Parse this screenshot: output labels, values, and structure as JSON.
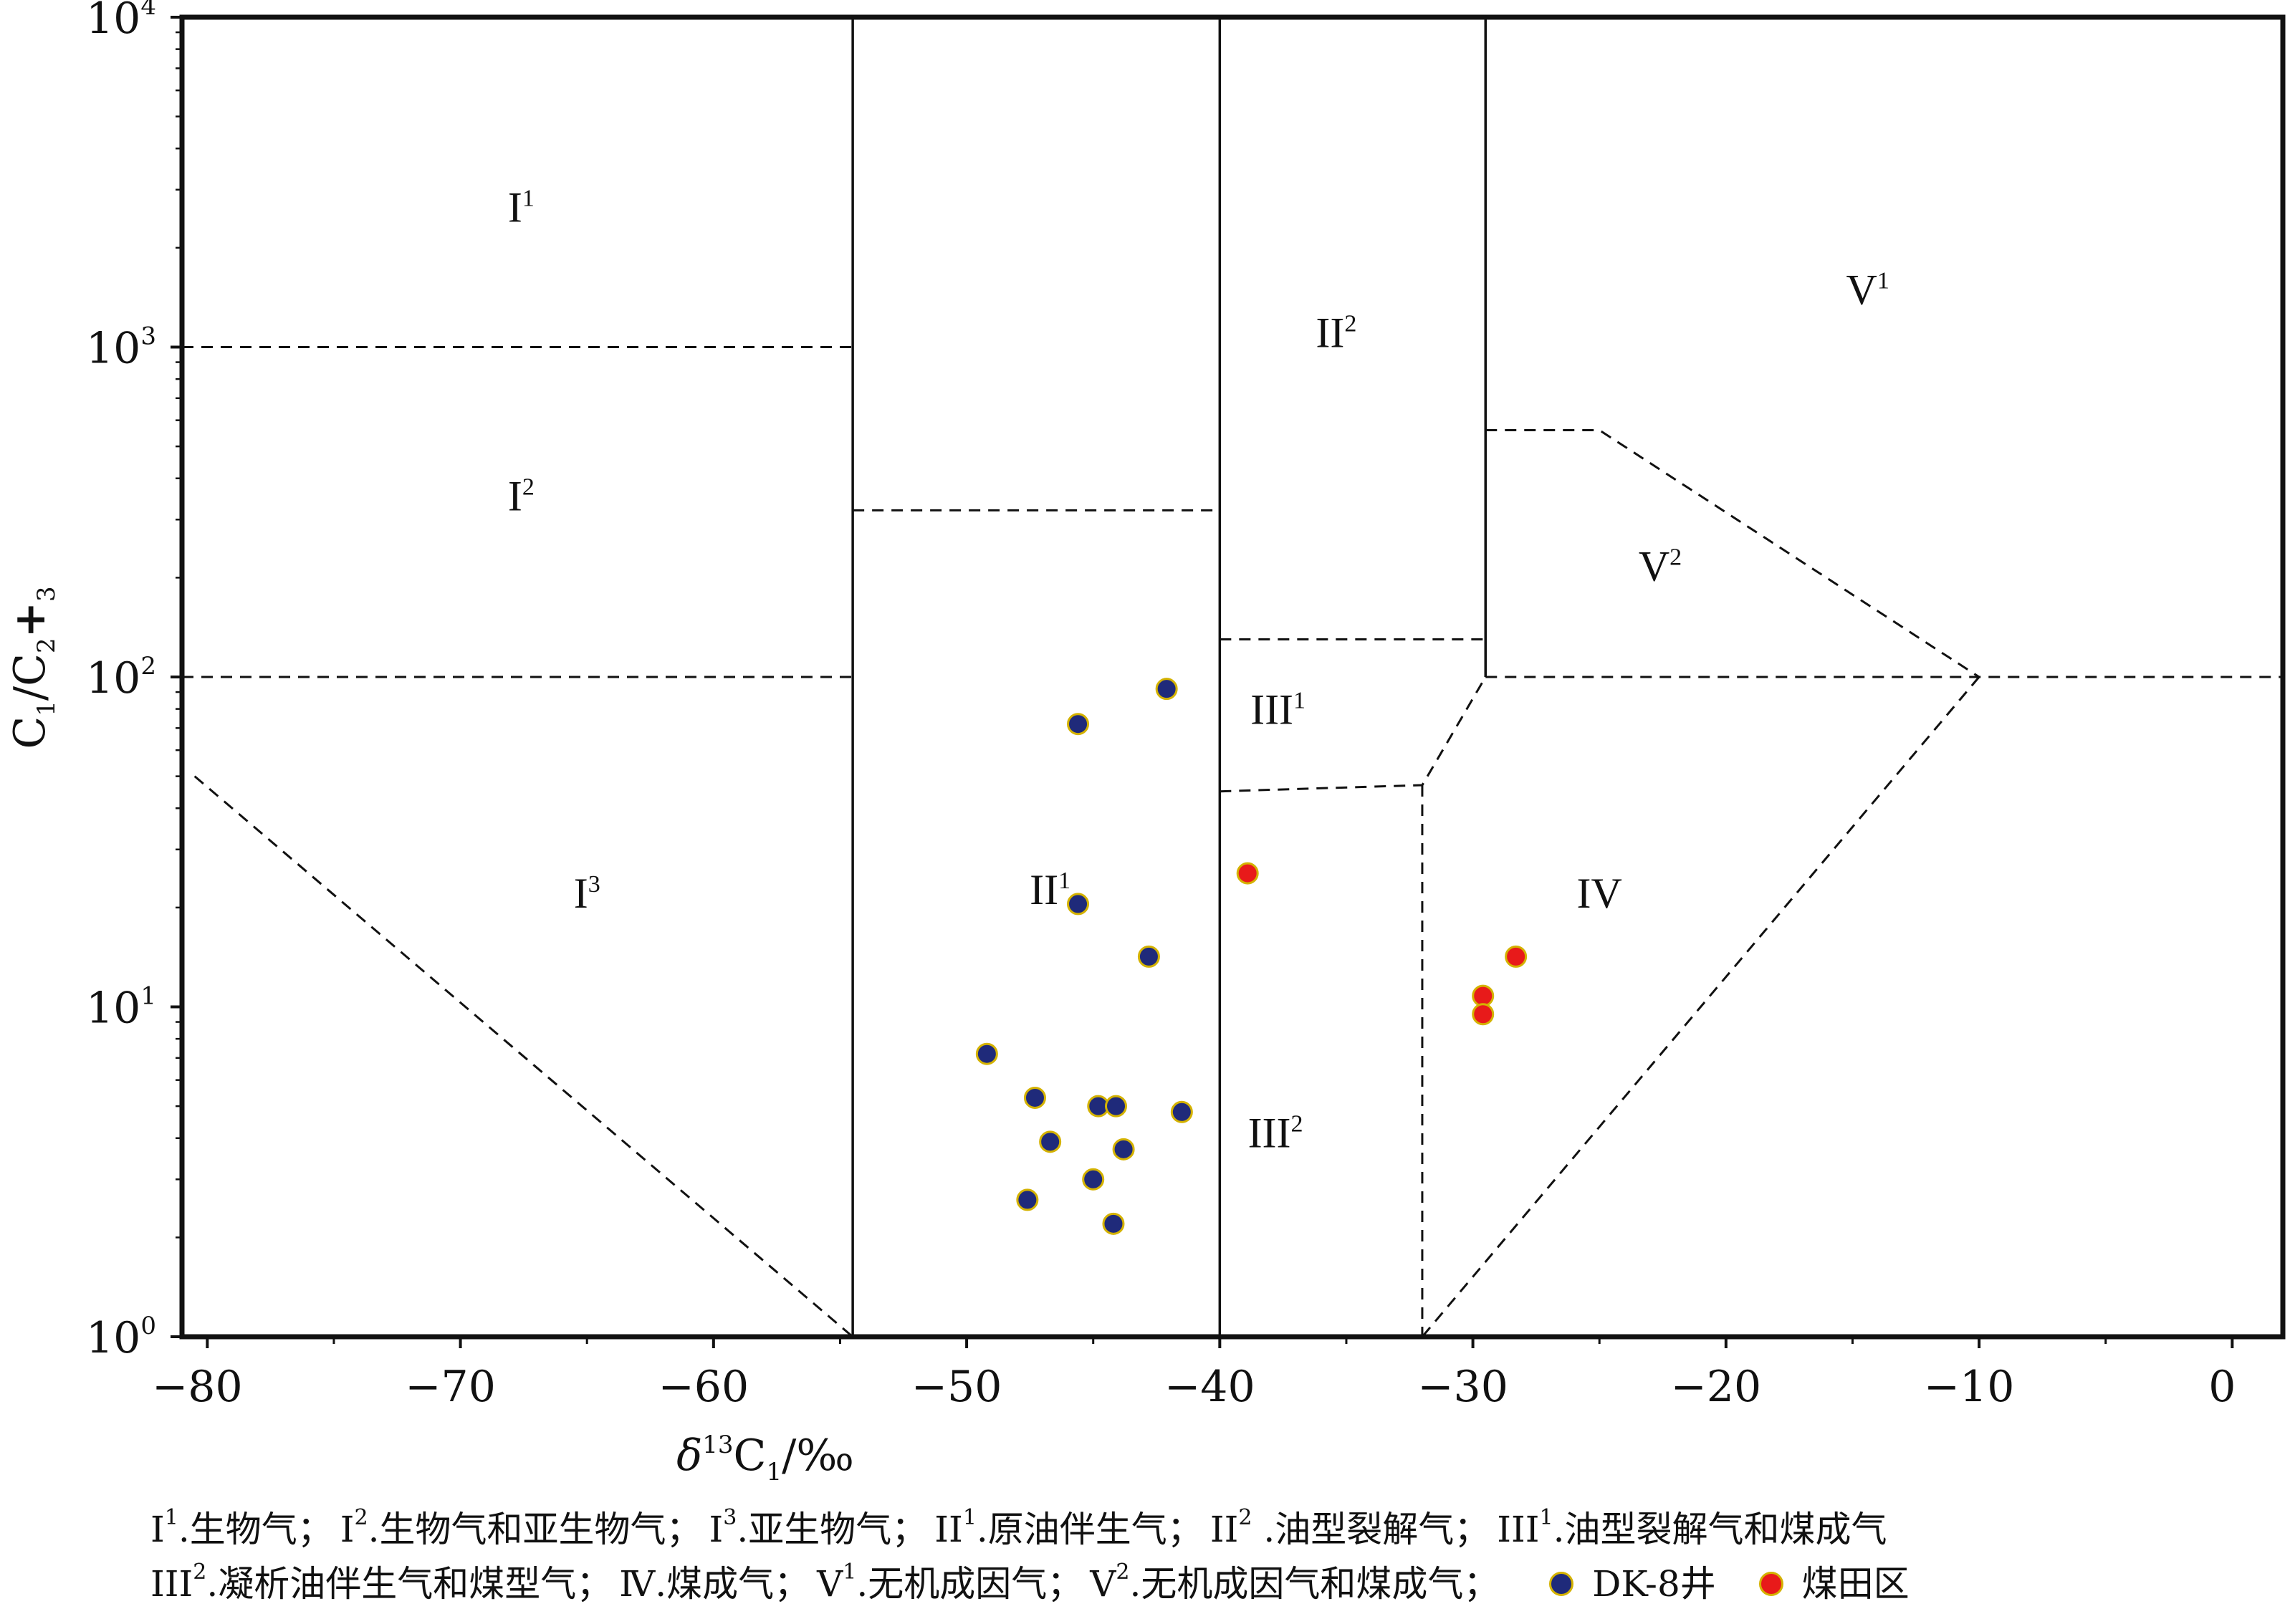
{
  "chart_data": {
    "type": "scatter",
    "xlabel": "δ13C1/‰",
    "ylabel": "C1/C2+3",
    "xlim": [
      -81,
      2
    ],
    "ylim": [
      1,
      10000
    ],
    "yscale": "log",
    "x_ticks": [
      -80,
      -70,
      -60,
      -50,
      -40,
      -30,
      -20,
      -10,
      0
    ],
    "x_tick_labels": [
      "−80",
      "−70",
      "−60",
      "−50",
      "−40",
      "−30",
      "−20",
      "−10",
      "0"
    ],
    "y_ticks": [
      1,
      10,
      100,
      1000,
      10000
    ],
    "y_tick_labels": [
      {
        "base": "10",
        "exp": "0"
      },
      {
        "base": "10",
        "exp": "1"
      },
      {
        "base": "10",
        "exp": "2"
      },
      {
        "base": "10",
        "exp": "3"
      },
      {
        "base": "10",
        "exp": "4"
      }
    ],
    "series": [
      {
        "name": "DK-8井",
        "color": "#1f2a7a",
        "points": [
          {
            "x": -42.1,
            "y": 92
          },
          {
            "x": -45.6,
            "y": 72
          },
          {
            "x": -45.6,
            "y": 20.5
          },
          {
            "x": -42.8,
            "y": 14.2
          },
          {
            "x": -49.2,
            "y": 7.2
          },
          {
            "x": -47.3,
            "y": 5.3
          },
          {
            "x": -44.8,
            "y": 5.0
          },
          {
            "x": -44.1,
            "y": 5.0
          },
          {
            "x": -41.5,
            "y": 4.8
          },
          {
            "x": -46.7,
            "y": 3.9
          },
          {
            "x": -43.8,
            "y": 3.7
          },
          {
            "x": -45.0,
            "y": 3.0
          },
          {
            "x": -47.6,
            "y": 2.6
          },
          {
            "x": -44.2,
            "y": 2.2
          }
        ]
      },
      {
        "name": "煤田区",
        "color": "#e81a1a",
        "points": [
          {
            "x": -38.9,
            "y": 25.4
          },
          {
            "x": -28.3,
            "y": 14.2
          },
          {
            "x": -29.6,
            "y": 10.8
          },
          {
            "x": -29.6,
            "y": 9.5
          }
        ]
      }
    ],
    "boundaries": {
      "solid": [
        [
          [
            -54.5,
            1
          ],
          [
            -54.5,
            10000
          ]
        ],
        [
          [
            -40,
            1
          ],
          [
            -40,
            10000
          ]
        ],
        [
          [
            -29.5,
            100
          ],
          [
            -29.5,
            10000
          ]
        ]
      ],
      "dashed": [
        [
          [
            -81,
            1000
          ],
          [
            -54.5,
            1000
          ]
        ],
        [
          [
            -81,
            100
          ],
          [
            -54.5,
            100
          ]
        ],
        [
          [
            -80.5,
            50
          ],
          [
            -54.5,
            1
          ]
        ],
        [
          [
            -54.5,
            320
          ],
          [
            -40,
            320
          ]
        ],
        [
          [
            -40,
            130
          ],
          [
            -29.5,
            130
          ]
        ],
        [
          [
            -40,
            45
          ],
          [
            -32,
            47
          ],
          [
            -29.5,
            100
          ]
        ],
        [
          [
            -32,
            47
          ],
          [
            -32,
            1
          ]
        ],
        [
          [
            -29.5,
            100
          ],
          [
            2,
            100
          ]
        ],
        [
          [
            -29.5,
            560
          ],
          [
            -25,
            560
          ],
          [
            -10,
            100
          ]
        ],
        [
          [
            -10,
            100
          ],
          [
            -32,
            1
          ]
        ]
      ]
    },
    "regions": [
      {
        "label": "I",
        "sup": "1",
        "x": -67.6,
        "y": 2400
      },
      {
        "label": "I",
        "sup": "2",
        "x": -67.6,
        "y": 320
      },
      {
        "label": "I",
        "sup": "3",
        "x": -65,
        "y": 20
      },
      {
        "label": "II",
        "sup": "1",
        "x": -46.7,
        "y": 20.5
      },
      {
        "label": "II",
        "sup": "2",
        "x": -35.4,
        "y": 1000
      },
      {
        "label": "III",
        "sup": "1",
        "x": -37.7,
        "y": 72
      },
      {
        "label": "III",
        "sup": "2",
        "x": -37.8,
        "y": 3.75
      },
      {
        "label": "IV",
        "sup": "",
        "x": -25,
        "y": 20
      },
      {
        "label": "V",
        "sup": "1",
        "x": -14.4,
        "y": 1350
      },
      {
        "label": "V",
        "sup": "2",
        "x": -22.6,
        "y": 196
      }
    ]
  },
  "caption": {
    "line1": [
      {
        "roman": "I",
        "sup": "1",
        "text": ".生物气；"
      },
      {
        "roman": "I",
        "sup": "2",
        "text": ".生物气和亚生物气；"
      },
      {
        "roman": "I",
        "sup": "3",
        "text": ".亚生物气；"
      },
      {
        "roman": "II",
        "sup": "1",
        "text": ".原油伴生气；"
      },
      {
        "roman": "II",
        "sup": "2",
        "text": " .油型裂解气；"
      },
      {
        "roman": "III",
        "sup": "1",
        "text": ".油型裂解气和煤成气"
      }
    ],
    "line2": [
      {
        "roman": "III",
        "sup": "2",
        "text": ".凝析油伴生气和煤型气；"
      },
      {
        "roman": "Ⅳ",
        "sup": "",
        "text": ".煤成气；"
      },
      {
        "roman": "V",
        "sup": "1",
        "text": ".无机成因气；"
      },
      {
        "roman": "V",
        "sup": "2",
        "text": ".无机成因气和煤成气；"
      }
    ]
  }
}
